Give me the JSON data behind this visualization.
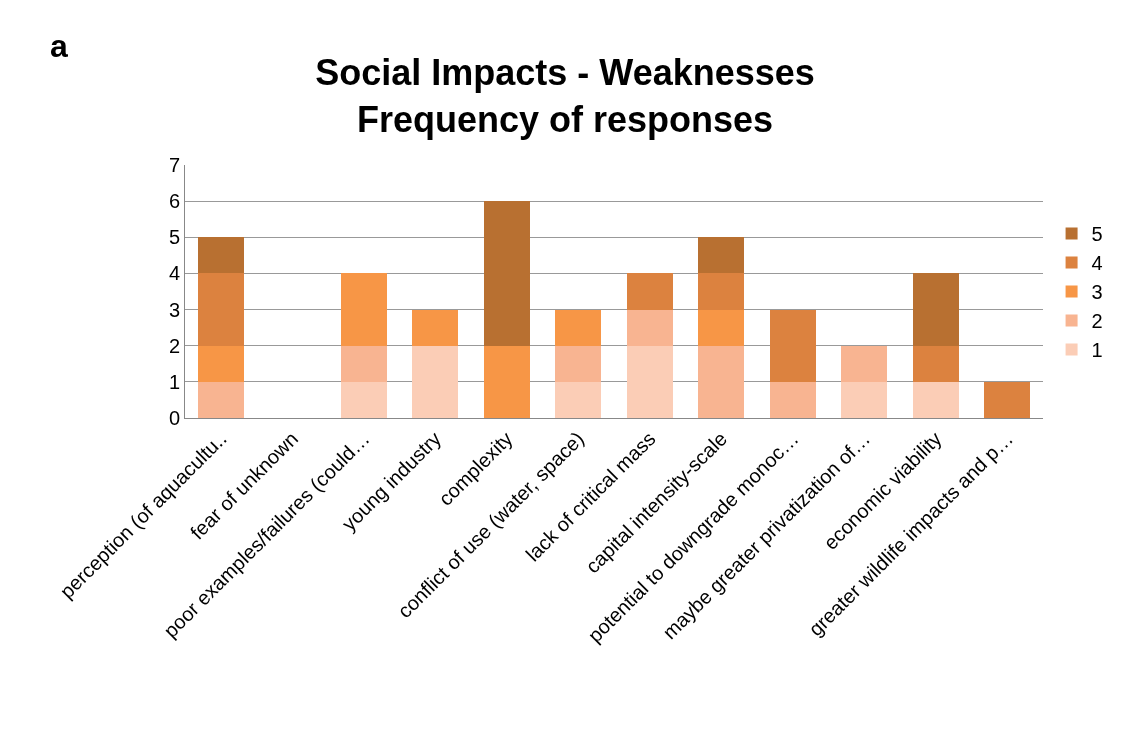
{
  "chart_data": {
    "type": "bar",
    "stacked": true,
    "title": "Social Impacts - Weaknesses\nFrequency of responses",
    "categories": [
      "perception (of aquacultu..",
      "fear of unknown",
      "poor examples/failures (could…",
      "young industry",
      "complexity",
      "conflict of use (water, space)",
      "lack of critical mass",
      "capital intensity-scale",
      "potential to downgrade monoc…",
      "maybe greater privatization of…",
      "economic viability",
      "greater wildlife impacts and p…"
    ],
    "series": [
      {
        "name": "1",
        "color": "#fbcdb6",
        "values": [
          0,
          0,
          1,
          2,
          0,
          1,
          2,
          0,
          0,
          1,
          1,
          0
        ]
      },
      {
        "name": "2",
        "color": "#f8b491",
        "values": [
          1,
          0,
          1,
          0,
          0,
          1,
          1,
          2,
          1,
          1,
          0,
          0
        ]
      },
      {
        "name": "3",
        "color": "#f79646",
        "values": [
          1,
          0,
          2,
          1,
          2,
          1,
          0,
          1,
          0,
          0,
          0,
          0
        ]
      },
      {
        "name": "4",
        "color": "#dc823f",
        "values": [
          2,
          0,
          0,
          0,
          0,
          0,
          1,
          1,
          2,
          0,
          1,
          1
        ]
      },
      {
        "name": "5",
        "color": "#b87031",
        "values": [
          1,
          0,
          0,
          0,
          4,
          0,
          0,
          1,
          0,
          0,
          2,
          0
        ]
      }
    ],
    "ylim": [
      0,
      7
    ],
    "yticks": [
      0,
      1,
      2,
      3,
      4,
      5,
      6,
      7
    ],
    "grid": "y",
    "legend": "right",
    "annotations": [
      "a"
    ]
  }
}
